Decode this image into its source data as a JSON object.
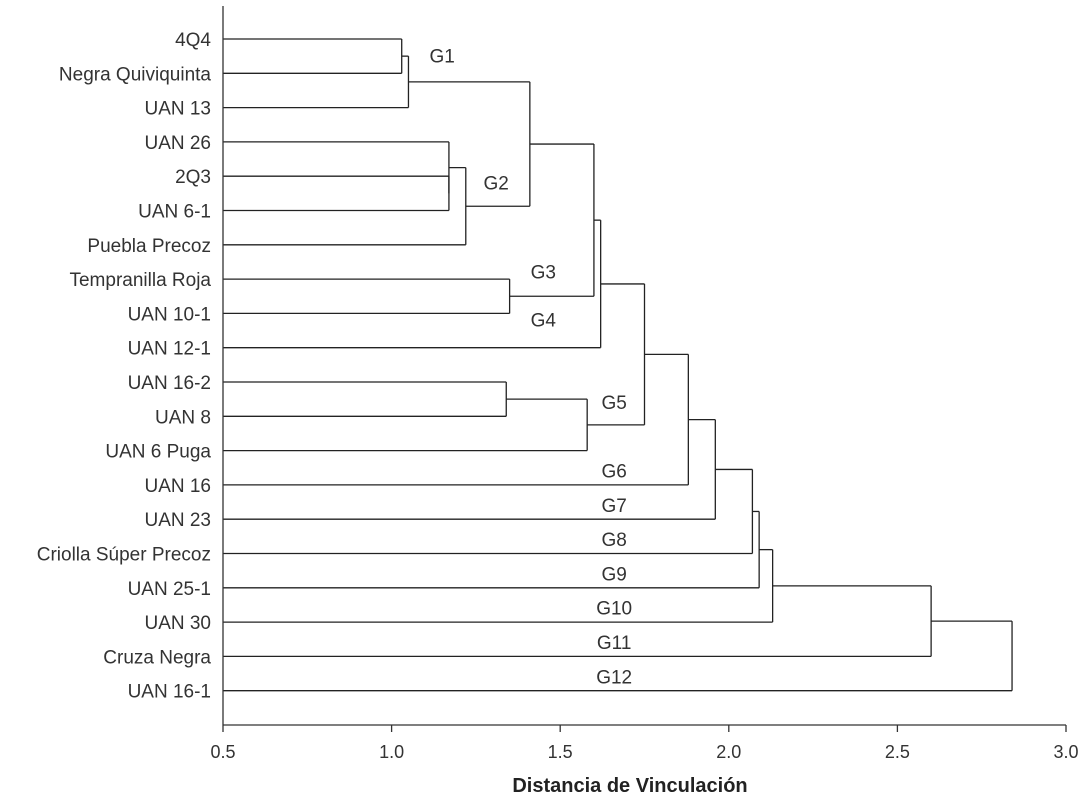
{
  "chart_data": {
    "type": "dendrogram",
    "xlabel": "Distancia de Vinculación",
    "xlim": [
      0.5,
      3.0
    ],
    "xticks": [
      0.5,
      1.0,
      1.5,
      2.0,
      2.5,
      3.0
    ],
    "xtick_labels": [
      "0.5",
      "1.0",
      "1.5",
      "2.0",
      "2.5",
      "3.0"
    ],
    "leaves": [
      "4Q4",
      "Negra Quiviquinta",
      "UAN 13",
      "UAN 26",
      "2Q3",
      "UAN 6-1",
      "Puebla Precoz",
      "Tempranilla Roja",
      "UAN 10-1",
      "UAN 12-1",
      "UAN 16-2",
      "UAN 8",
      "UAN 6 Puga",
      "UAN 16",
      "UAN 23",
      "Criolla Súper Precoz",
      "UAN 25-1",
      "UAN 30",
      "Cruza Negra",
      "UAN 16-1"
    ],
    "merges": [
      {
        "id": "m1",
        "a": "L0",
        "b": "L1",
        "height": 1.03
      },
      {
        "id": "m2",
        "a": "m1",
        "b": "L2",
        "height": 1.05
      },
      {
        "id": "m3",
        "a": "L4",
        "b": "L5",
        "height": 1.17
      },
      {
        "id": "m4",
        "a": "L3",
        "b": "m3",
        "height": 1.17
      },
      {
        "id": "m5",
        "a": "m4",
        "b": "L6",
        "height": 1.22
      },
      {
        "id": "m6",
        "a": "m2",
        "b": "m5",
        "height": 1.41
      },
      {
        "id": "m7",
        "a": "L7",
        "b": "L8",
        "height": 1.35
      },
      {
        "id": "m8",
        "a": "m6",
        "b": "m7",
        "height": 1.6
      },
      {
        "id": "m9",
        "a": "m8",
        "b": "L9",
        "height": 1.62
      },
      {
        "id": "m10",
        "a": "L10",
        "b": "L11",
        "height": 1.34
      },
      {
        "id": "m11",
        "a": "m10",
        "b": "L12",
        "height": 1.58
      },
      {
        "id": "m12",
        "a": "m9",
        "b": "m11",
        "height": 1.75
      },
      {
        "id": "m13",
        "a": "m12",
        "b": "L13",
        "height": 1.88
      },
      {
        "id": "m14",
        "a": "m13",
        "b": "L14",
        "height": 1.96
      },
      {
        "id": "m15",
        "a": "m14",
        "b": "L15",
        "height": 2.07
      },
      {
        "id": "m16",
        "a": "m15",
        "b": "L16",
        "height": 2.09
      },
      {
        "id": "m17",
        "a": "m16",
        "b": "L17",
        "height": 2.13
      },
      {
        "id": "m18",
        "a": "m17",
        "b": "L18",
        "height": 2.6
      },
      {
        "id": "m19",
        "a": "m18",
        "b": "L19",
        "height": 2.84
      }
    ],
    "groups": [
      {
        "label": "G1",
        "row": 0.8,
        "distance": 1.15
      },
      {
        "label": "G2",
        "row": 4.5,
        "distance": 1.31
      },
      {
        "label": "G3",
        "row": 7.1,
        "distance": 1.45
      },
      {
        "label": "G4",
        "row": 8.5,
        "distance": 1.45
      },
      {
        "label": "G5",
        "row": 10.9,
        "distance": 1.66
      },
      {
        "label": "G6",
        "row": 12.9,
        "distance": 1.66
      },
      {
        "label": "G7",
        "row": 13.9,
        "distance": 1.66
      },
      {
        "label": "G8",
        "row": 14.9,
        "distance": 1.66
      },
      {
        "label": "G9",
        "row": 15.9,
        "distance": 1.66
      },
      {
        "label": "G10",
        "row": 16.9,
        "distance": 1.66
      },
      {
        "label": "G11",
        "row": 17.9,
        "distance": 1.66
      },
      {
        "label": "G12",
        "row": 18.9,
        "distance": 1.66
      }
    ]
  }
}
